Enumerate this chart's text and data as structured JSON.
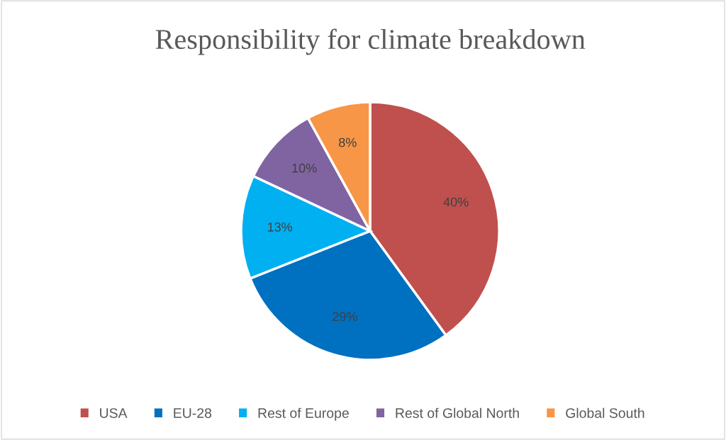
{
  "chart_data": {
    "type": "pie",
    "title": "Responsibility for climate breakdown",
    "categories": [
      "USA",
      "EU-28",
      "Rest of Europe",
      "Rest of Global North",
      "Global South"
    ],
    "values": [
      40,
      29,
      13,
      10,
      8
    ],
    "colors": [
      "#c0504d",
      "#0070c0",
      "#00b0f0",
      "#8064a2",
      "#f79646"
    ],
    "value_labels": [
      "40%",
      "29%",
      "13%",
      "10%",
      "8%"
    ],
    "legend": "bottom"
  }
}
